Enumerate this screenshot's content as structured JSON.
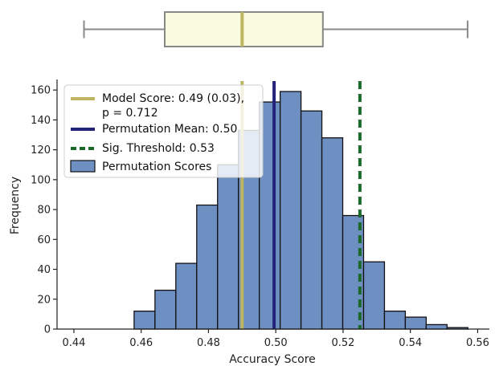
{
  "chart_data": [
    {
      "type": "boxplot",
      "summary": {
        "min": 0.443,
        "q1": 0.467,
        "median": 0.49,
        "q3": 0.514,
        "max": 0.557
      },
      "colors": {
        "box_fill": "#fafae0",
        "box_edge": "#888888",
        "median": "#bdb562"
      }
    },
    {
      "type": "bar",
      "xlabel": "Accuracy Score",
      "ylabel": "Frequency",
      "xlim": [
        0.435,
        0.563
      ],
      "ylim": [
        0,
        166
      ],
      "xticks": [
        0.44,
        0.46,
        0.48,
        0.5,
        0.52,
        0.54,
        0.56
      ],
      "xtick_labels": [
        "0.44",
        "0.46",
        "0.48",
        "0.50",
        "0.52",
        "0.54",
        "0.56"
      ],
      "yticks": [
        0,
        20,
        40,
        60,
        80,
        100,
        120,
        140,
        160
      ],
      "yticks_labels": [
        "0",
        "20",
        "40",
        "60",
        "80",
        "100",
        "120",
        "140",
        "160"
      ],
      "bins": [
        {
          "x0": 0.4579,
          "x1": 0.4641,
          "count": 12
        },
        {
          "x0": 0.4641,
          "x1": 0.4703,
          "count": 26
        },
        {
          "x0": 0.4703,
          "x1": 0.4765,
          "count": 44
        },
        {
          "x0": 0.4765,
          "x1": 0.4827,
          "count": 83
        },
        {
          "x0": 0.4827,
          "x1": 0.4889,
          "count": 110
        },
        {
          "x0": 0.4889,
          "x1": 0.4951,
          "count": 133
        },
        {
          "x0": 0.4951,
          "x1": 0.5013,
          "count": 152
        },
        {
          "x0": 0.5013,
          "x1": 0.5075,
          "count": 159
        },
        {
          "x0": 0.5075,
          "x1": 0.5137,
          "count": 146
        },
        {
          "x0": 0.5137,
          "x1": 0.5199,
          "count": 128
        },
        {
          "x0": 0.5199,
          "x1": 0.5261,
          "count": 76
        },
        {
          "x0": 0.5261,
          "x1": 0.5323,
          "count": 45
        },
        {
          "x0": 0.5323,
          "x1": 0.5385,
          "count": 12
        },
        {
          "x0": 0.5385,
          "x1": 0.5447,
          "count": 8
        },
        {
          "x0": 0.5447,
          "x1": 0.5509,
          "count": 3
        },
        {
          "x0": 0.5509,
          "x1": 0.5571,
          "count": 1
        }
      ],
      "lines": [
        {
          "name": "model",
          "x": 0.49,
          "color": "#bdb562",
          "style": "solid"
        },
        {
          "name": "permutation-mean",
          "x": 0.4995,
          "color": "#232379",
          "style": "solid"
        },
        {
          "name": "threshold",
          "x": 0.525,
          "color": "#1a6b2a",
          "style": "dashed"
        }
      ],
      "colors": {
        "bar_fill": "#6e8fc2",
        "bar_edge": "#111111"
      },
      "legend": {
        "position": "top-left",
        "entries": [
          {
            "label_lines": [
              "Model Score: 0.49 (0.03),",
              "p = 0.712"
            ],
            "swatch": "line",
            "color": "#bdb562",
            "style": "solid"
          },
          {
            "label_lines": [
              "Permutation Mean: 0.50"
            ],
            "swatch": "line",
            "color": "#232379",
            "style": "solid"
          },
          {
            "label_lines": [
              "Sig. Threshold: 0.53"
            ],
            "swatch": "line",
            "color": "#1a6b2a",
            "style": "dashed"
          },
          {
            "label_lines": [
              "Permutation Scores"
            ],
            "swatch": "patch",
            "color": "#6e8fc2",
            "style": "solid"
          }
        ]
      }
    }
  ]
}
